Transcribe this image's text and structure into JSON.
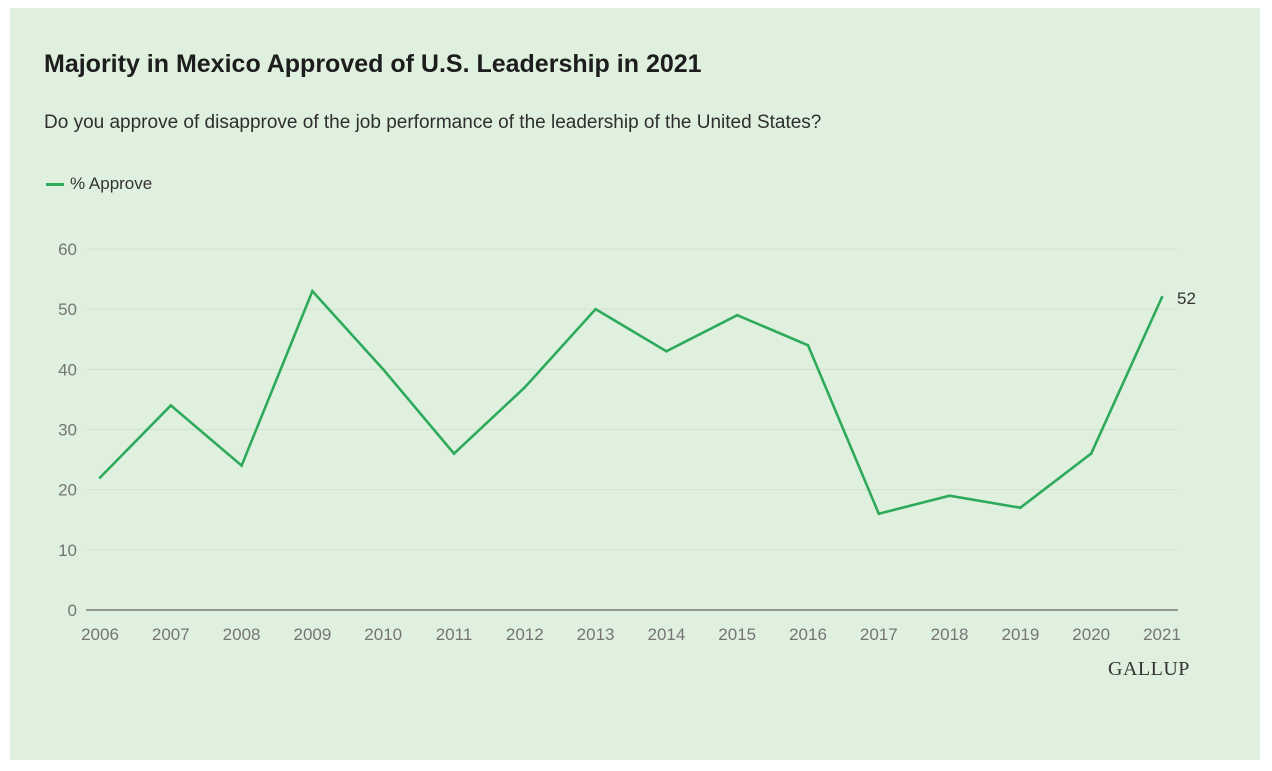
{
  "colors": {
    "background": "#e0f0de",
    "line": "#2eaa5c",
    "grid": "#cfe3cc",
    "axis": "#7a7a7a"
  },
  "header": {
    "title": "Majority in Mexico Approved of U.S. Leadership in 2021",
    "subtitle": "Do you approve of disapprove of the job performance of the leadership of the United States?"
  },
  "legend": {
    "label": "% Approve"
  },
  "brand": {
    "logo_text": "GALLUP"
  },
  "chart_data": {
    "type": "line",
    "title": "Majority in Mexico Approved of U.S. Leadership in 2021",
    "subtitle": "Do you approve of disapprove of the job performance of the leadership of the United States?",
    "categories": [
      "2006",
      "2007",
      "2008",
      "2009",
      "2010",
      "2011",
      "2012",
      "2013",
      "2014",
      "2015",
      "2016",
      "2017",
      "2018",
      "2019",
      "2020",
      "2021"
    ],
    "series": [
      {
        "name": "% Approve",
        "values": [
          22,
          34,
          24,
          53,
          40,
          26,
          37,
          50,
          43,
          49,
          44,
          16,
          19,
          17,
          26,
          52
        ]
      }
    ],
    "end_label": "52",
    "ylim": [
      0,
      60
    ],
    "yticks": [
      0,
      10,
      20,
      30,
      40,
      50,
      60
    ],
    "xlabel": "",
    "ylabel": "",
    "grid": true,
    "legend_position": "top-left"
  }
}
